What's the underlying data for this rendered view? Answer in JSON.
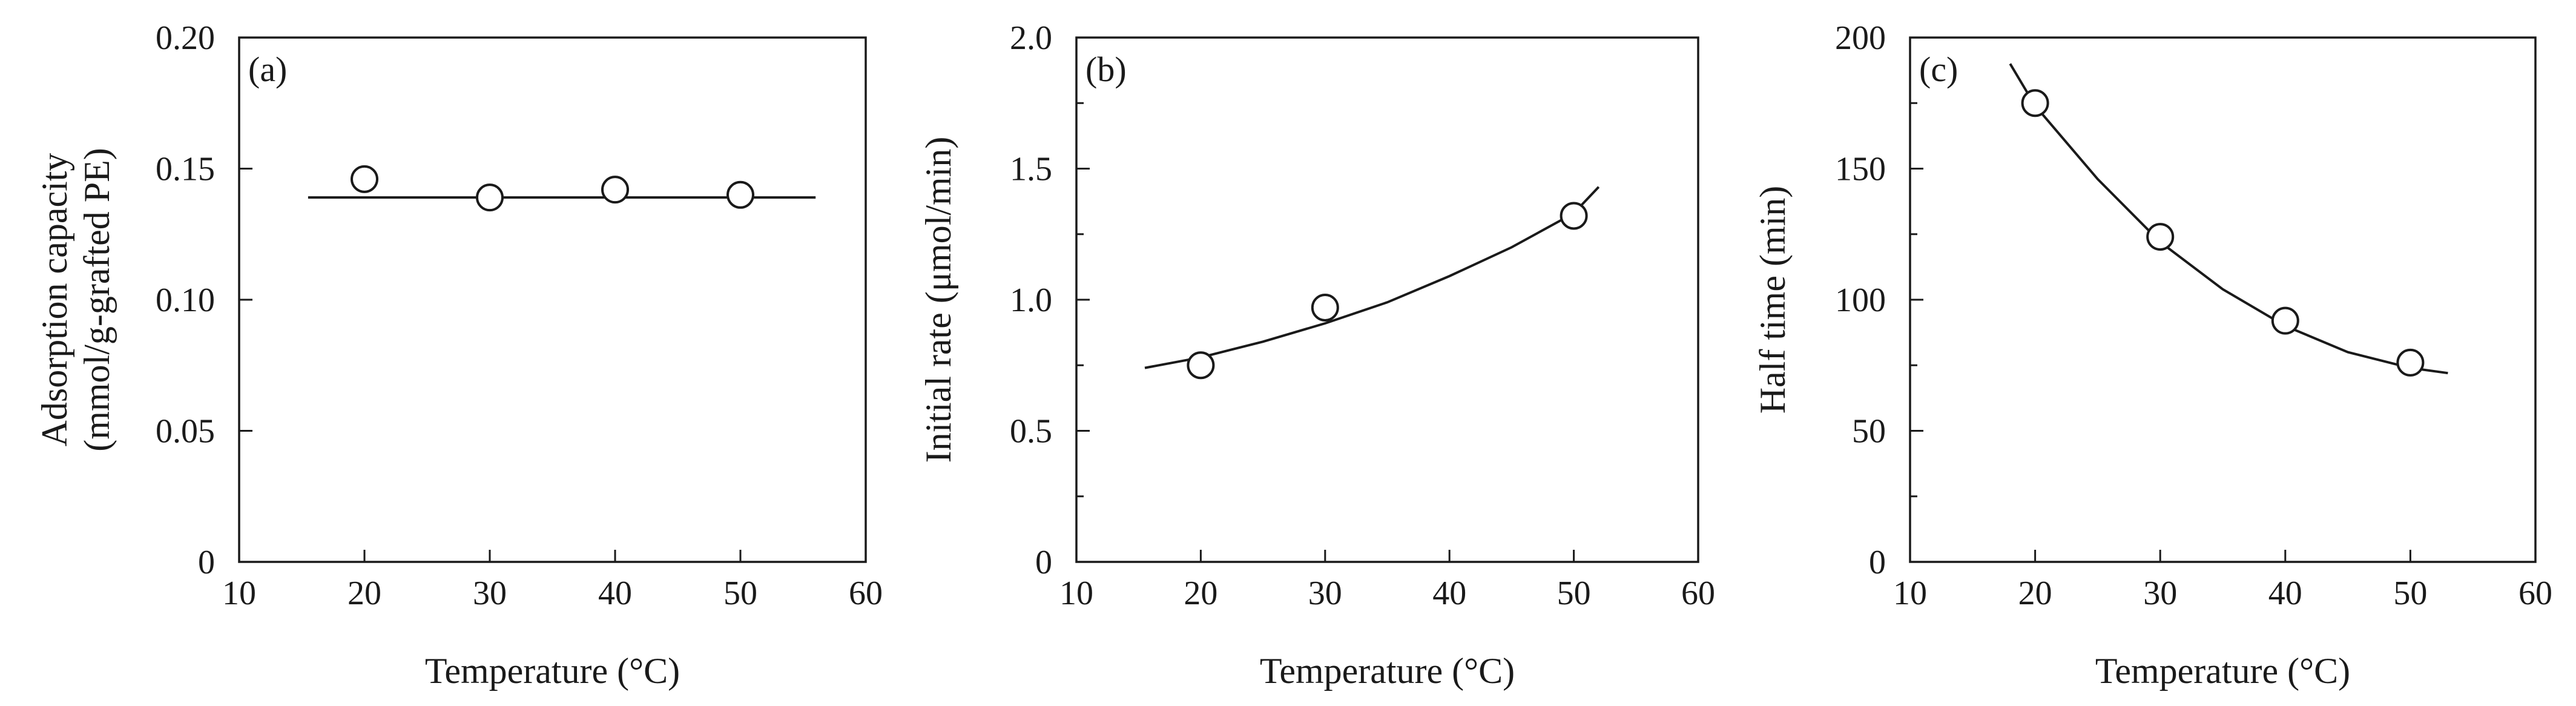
{
  "chart_data": [
    {
      "type": "scatter",
      "panel_label": "(a)",
      "xlabel": "Temperature (°C)",
      "ylabel_line1": "Adsorption capacity",
      "ylabel_line2": "(mmol/g-grafted PE)",
      "xlim": [
        10,
        60
      ],
      "ylim": [
        0,
        0.2
      ],
      "x_ticks": [
        10,
        20,
        30,
        40,
        50,
        60
      ],
      "x_tick_labels": [
        "10",
        "20",
        "30",
        "40",
        "50",
        "60"
      ],
      "y_ticks": [
        0,
        0.05,
        0.1,
        0.15,
        0.2
      ],
      "y_tick_labels": [
        "0",
        "0.05",
        "0.10",
        "0.15",
        "0.20"
      ],
      "y_minor_ticks": [],
      "points": {
        "x": [
          20,
          30,
          40,
          50
        ],
        "y": [
          0.146,
          0.139,
          0.142,
          0.14
        ]
      },
      "fit": {
        "x": [
          15.5,
          56
        ],
        "y": [
          0.139,
          0.139
        ]
      }
    },
    {
      "type": "scatter",
      "panel_label": "(b)",
      "xlabel": "Temperature (°C)",
      "ylabel_line1": "Initial rate (μmol/min)",
      "ylabel_line2": "",
      "xlim": [
        10,
        60
      ],
      "ylim": [
        0,
        2.0
      ],
      "x_ticks": [
        10,
        20,
        30,
        40,
        50,
        60
      ],
      "x_tick_labels": [
        "10",
        "20",
        "30",
        "40",
        "50",
        "60"
      ],
      "y_ticks": [
        0,
        0.5,
        1.0,
        1.5,
        2.0
      ],
      "y_tick_labels": [
        "0",
        "0.5",
        "1.0",
        "1.5",
        "2.0"
      ],
      "y_minor_ticks": [
        0.25,
        0.75,
        1.25,
        1.75
      ],
      "points": {
        "x": [
          20,
          30,
          40,
          50
        ],
        "y": [
          0.75,
          0.97,
          null,
          1.32
        ]
      },
      "fit": {
        "x": [
          15.5,
          20,
          25,
          30,
          35,
          40,
          45,
          50,
          52
        ],
        "y": [
          0.74,
          0.78,
          0.84,
          0.91,
          0.99,
          1.09,
          1.2,
          1.33,
          1.43
        ]
      }
    },
    {
      "type": "scatter",
      "panel_label": "(c)",
      "xlabel": "Temperature (°C)",
      "ylabel_line1": "Half time (min)",
      "ylabel_line2": "",
      "xlim": [
        10,
        60
      ],
      "ylim": [
        0,
        200
      ],
      "x_ticks": [
        10,
        20,
        30,
        40,
        50,
        60
      ],
      "x_tick_labels": [
        "10",
        "20",
        "30",
        "40",
        "50",
        "60"
      ],
      "y_ticks": [
        0,
        50,
        100,
        150,
        200
      ],
      "y_tick_labels": [
        "0",
        "50",
        "100",
        "150",
        "200"
      ],
      "y_minor_ticks": [
        25,
        75,
        125,
        175
      ],
      "points": {
        "x": [
          20,
          30,
          40,
          50
        ],
        "y": [
          175,
          124,
          92,
          76
        ]
      },
      "fit": {
        "x": [
          18,
          20,
          25,
          30,
          35,
          40,
          45,
          50,
          53
        ],
        "y": [
          190,
          174,
          146,
          122,
          104,
          90,
          80,
          74,
          72
        ]
      }
    }
  ]
}
